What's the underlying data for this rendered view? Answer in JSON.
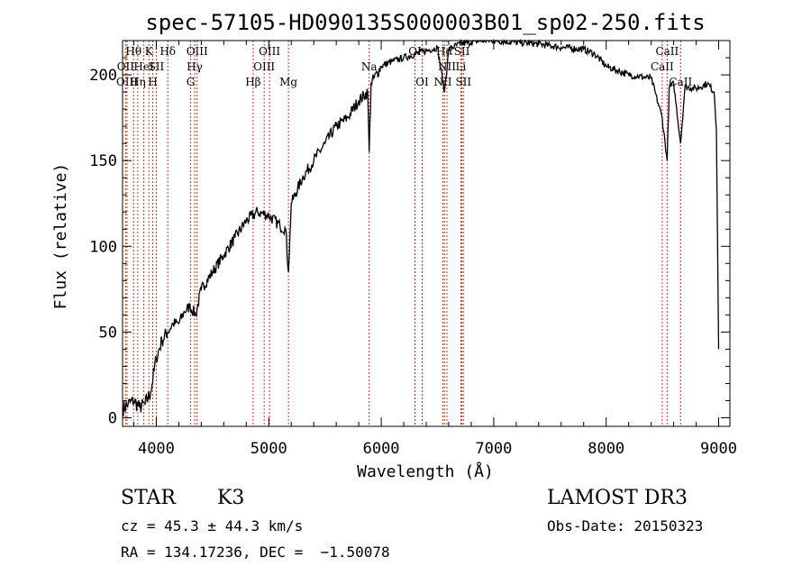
{
  "chart_data": {
    "type": "line",
    "title": "spec-57105-HD090135S000003B01_sp02-250.fits",
    "xlabel": "Wavelength (Å)",
    "ylabel": "Flux (relative)",
    "xlim": [
      3700,
      9100
    ],
    "ylim": [
      -5,
      220
    ],
    "xticks": [
      4000,
      5000,
      6000,
      7000,
      8000,
      9000
    ],
    "xtick_labels": [
      "4000",
      "5000",
      "6000",
      "7000",
      "8000",
      "9000"
    ],
    "yticks": [
      0,
      50,
      100,
      150,
      200
    ],
    "ytick_labels": [
      "0",
      "50",
      "100",
      "150",
      "200"
    ],
    "series": [
      {
        "name": "flux",
        "x": [
          3700,
          3750,
          3800,
          3850,
          3900,
          3950,
          4000,
          4050,
          4100,
          4150,
          4200,
          4250,
          4300,
          4350,
          4400,
          4500,
          4600,
          4700,
          4800,
          4900,
          5000,
          5100,
          5150,
          5175,
          5200,
          5300,
          5400,
          5500,
          5600,
          5700,
          5800,
          5880,
          5893,
          5910,
          6000,
          6100,
          6200,
          6300,
          6400,
          6500,
          6563,
          6600,
          6700,
          6800,
          6900,
          7000,
          7200,
          7400,
          7600,
          7800,
          7900,
          8000,
          8200,
          8400,
          8498,
          8542,
          8560,
          8600,
          8662,
          8700,
          8800,
          8900,
          8960,
          8980,
          9000
        ],
        "y": [
          5,
          8,
          10,
          6,
          8,
          15,
          35,
          45,
          50,
          55,
          55,
          62,
          65,
          60,
          75,
          85,
          95,
          105,
          115,
          120,
          118,
          112,
          110,
          85,
          125,
          140,
          150,
          160,
          170,
          175,
          185,
          190,
          155,
          195,
          205,
          208,
          210,
          212,
          214,
          216,
          190,
          215,
          218,
          219,
          220,
          220,
          219,
          218,
          216,
          215,
          212,
          205,
          200,
          198,
          175,
          150,
          192,
          195,
          160,
          193,
          192,
          195,
          190,
          168,
          40
        ]
      }
    ],
    "line_labels": [
      {
        "label": "Hθ",
        "x": 3798,
        "row": 1
      },
      {
        "label": "OII",
        "x": 3727,
        "row": 2
      },
      {
        "label": "OIII",
        "x": 3740,
        "row": 3
      },
      {
        "label": "K",
        "x": 3934,
        "row": 1
      },
      {
        "label": "HeI",
        "x": 3889,
        "row": 2
      },
      {
        "label": "Hη",
        "x": 3835,
        "row": 3
      },
      {
        "label": "SII",
        "x": 4000,
        "row": 2
      },
      {
        "label": "H",
        "x": 3969,
        "row": 3
      },
      {
        "label": "Hδ",
        "x": 4102,
        "row": 1
      },
      {
        "label": "OIII",
        "x": 4363,
        "row": 1
      },
      {
        "label": "Hγ",
        "x": 4341,
        "row": 2
      },
      {
        "label": "G",
        "x": 4305,
        "row": 3
      },
      {
        "label": "OIII",
        "x": 5007,
        "row": 1
      },
      {
        "label": "OIII",
        "x": 4959,
        "row": 2
      },
      {
        "label": "Hβ",
        "x": 4861,
        "row": 3
      },
      {
        "label": "Mg",
        "x": 5175,
        "row": 3
      },
      {
        "label": "Na",
        "x": 5893,
        "row": 2
      },
      {
        "label": "OI",
        "x": 6300,
        "row": 1
      },
      {
        "label": "OI",
        "x": 6364,
        "row": 3
      },
      {
        "label": "Hα",
        "x": 6563,
        "row": 1
      },
      {
        "label": "NII",
        "x": 6584,
        "row": 2
      },
      {
        "label": "NII",
        "x": 6548,
        "row": 3
      },
      {
        "label": "SII",
        "x": 6717,
        "row": 1
      },
      {
        "label": "Li",
        "x": 6708,
        "row": 2
      },
      {
        "label": "SII",
        "x": 6731,
        "row": 3
      },
      {
        "label": "CaII",
        "x": 8542,
        "row": 1
      },
      {
        "label": "CaII",
        "x": 8498,
        "row": 2
      },
      {
        "label": "CaII",
        "x": 8662,
        "row": 3
      }
    ],
    "line_markers": [
      3727,
      3740,
      3798,
      3835,
      3889,
      3934,
      3969,
      4000,
      4102,
      4305,
      4341,
      4363,
      4861,
      4959,
      5007,
      5175,
      5893,
      6300,
      6364,
      6548,
      6563,
      6584,
      6708,
      6717,
      6731,
      8498,
      8542,
      8662
    ]
  },
  "info": {
    "object_type": "STAR",
    "subclass": "K3",
    "cz_text": "cz = 45.3 ± 44.3 km/s",
    "coords_text": "RA = 134.17236, DEC =  −1.50078",
    "survey": "LAMOST DR3",
    "obs_date": "Obs-Date: 20150323"
  },
  "colors": {
    "axis": "#000000",
    "spectrum": "#000000",
    "marker": "#c0392b"
  }
}
